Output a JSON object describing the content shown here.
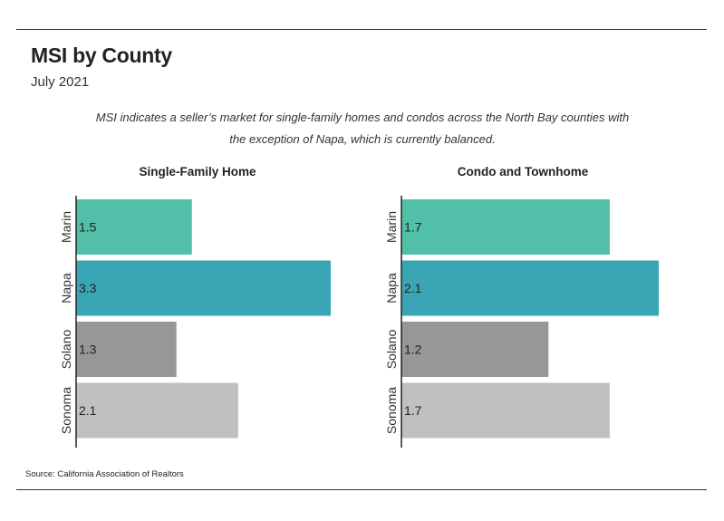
{
  "header": {
    "title": "MSI by County",
    "subtitle": "July 2021",
    "description": "MSI indicates a seller’s market for single-family homes and condos across the North Bay counties with the exception of Napa, which is currently balanced."
  },
  "footer": {
    "source": "Source:  California Association of Realtors"
  },
  "colors": {
    "Marin": "#52bfa8",
    "Napa": "#3aa6b5",
    "Solano": "#979797",
    "Sonoma": "#c0c0c0"
  },
  "chart_data": [
    {
      "type": "bar",
      "orientation": "horizontal",
      "title": "Single-Family Home",
      "categories": [
        "Marin",
        "Napa",
        "Solano",
        "Sonoma"
      ],
      "values": [
        1.5,
        3.3,
        1.3,
        2.1
      ],
      "xlim": [
        0,
        3.3
      ],
      "grid": false,
      "legend": "none"
    },
    {
      "type": "bar",
      "orientation": "horizontal",
      "title": "Condo and Townhome",
      "categories": [
        "Marin",
        "Napa",
        "Solano",
        "Sonoma"
      ],
      "values": [
        1.7,
        2.1,
        1.2,
        1.7
      ],
      "xlim": [
        0,
        2.1
      ],
      "grid": false,
      "legend": "none"
    }
  ]
}
